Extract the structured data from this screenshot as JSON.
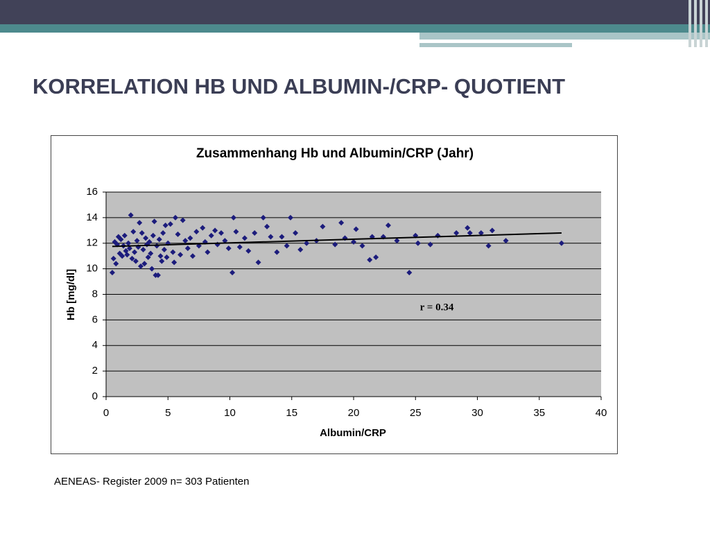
{
  "slide_title": "KORRELATION HB UND ALBUMIN-/CRP- QUOTIENT",
  "footnote": "AENEAS- Register 2009  n= 303 Patienten",
  "chart_data": {
    "type": "scatter",
    "title": "Zusammenhang Hb und Albumin/CRP (Jahr)",
    "xlabel": "Albumin/CRP",
    "ylabel": "Hb [mg/dl]",
    "annotation": "r = 0.34",
    "xlim": [
      0,
      40
    ],
    "xticks": [
      0,
      5,
      10,
      15,
      20,
      25,
      30,
      35,
      40
    ],
    "ylim": [
      0,
      16
    ],
    "yticks": [
      0,
      2,
      4,
      6,
      8,
      10,
      12,
      14,
      16
    ],
    "grid": true,
    "points": {
      "color": "#1c1c7c",
      "x": [
        0.5,
        0.6,
        0.7,
        0.8,
        0.9,
        1.0,
        1.1,
        1.2,
        1.3,
        1.4,
        1.5,
        1.6,
        1.7,
        1.8,
        1.9,
        2.0,
        2.1,
        2.2,
        2.3,
        2.4,
        2.5,
        2.6,
        2.7,
        2.8,
        2.9,
        3.0,
        3.1,
        3.2,
        3.3,
        3.4,
        3.5,
        3.6,
        3.7,
        3.8,
        3.9,
        4.0,
        4.1,
        4.2,
        4.3,
        4.4,
        4.5,
        4.6,
        4.7,
        4.8,
        4.9,
        5.0,
        5.2,
        5.4,
        5.5,
        5.6,
        5.8,
        6.0,
        6.2,
        6.4,
        6.6,
        6.8,
        7.0,
        7.3,
        7.5,
        7.8,
        8.0,
        8.2,
        8.5,
        8.8,
        9.0,
        9.3,
        9.6,
        9.9,
        10.2,
        10.3,
        10.5,
        10.8,
        11.2,
        11.5,
        12.0,
        12.3,
        12.7,
        13.0,
        13.3,
        13.8,
        14.2,
        14.6,
        14.9,
        15.3,
        15.7,
        16.2,
        17.0,
        17.5,
        18.5,
        19.0,
        19.3,
        20.0,
        20.2,
        20.7,
        21.3,
        21.5,
        21.8,
        22.4,
        22.8,
        23.5,
        24.5,
        25.0,
        25.2,
        26.2,
        26.8,
        28.3,
        29.2,
        29.4,
        30.3,
        30.9,
        31.2,
        32.3,
        36.8
      ],
      "y": [
        9.7,
        10.8,
        12.1,
        10.4,
        11.9,
        12.5,
        11.2,
        12.3,
        11.0,
        11.8,
        12.6,
        11.4,
        11.1,
        12.0,
        11.6,
        14.2,
        10.8,
        12.9,
        11.3,
        10.6,
        12.2,
        11.7,
        13.6,
        10.2,
        12.8,
        11.5,
        10.4,
        12.4,
        11.9,
        10.9,
        12.1,
        11.2,
        10.0,
        12.6,
        13.7,
        9.5,
        11.8,
        9.5,
        12.3,
        11.0,
        10.6,
        12.8,
        11.5,
        13.4,
        10.9,
        12.0,
        13.5,
        11.3,
        10.5,
        14.0,
        12.7,
        11.1,
        13.8,
        12.2,
        11.6,
        12.4,
        11.0,
        12.9,
        11.8,
        13.2,
        12.1,
        11.3,
        12.6,
        13.0,
        11.9,
        12.8,
        12.2,
        11.6,
        9.7,
        14.0,
        12.9,
        11.7,
        12.4,
        11.4,
        12.8,
        10.5,
        14.0,
        13.3,
        12.5,
        11.3,
        12.5,
        11.8,
        14.0,
        12.8,
        11.5,
        12.0,
        12.2,
        13.3,
        11.9,
        13.6,
        12.4,
        12.1,
        13.1,
        11.8,
        10.7,
        12.5,
        10.9,
        12.5,
        13.4,
        12.2,
        9.7,
        12.6,
        12.0,
        11.9,
        12.6,
        12.8,
        13.2,
        12.8,
        12.8,
        11.8,
        13.0,
        12.2,
        12.0
      ]
    },
    "trendline": {
      "color": "#000000",
      "x": [
        0.5,
        36.8
      ],
      "y": [
        11.75,
        12.8
      ]
    }
  }
}
